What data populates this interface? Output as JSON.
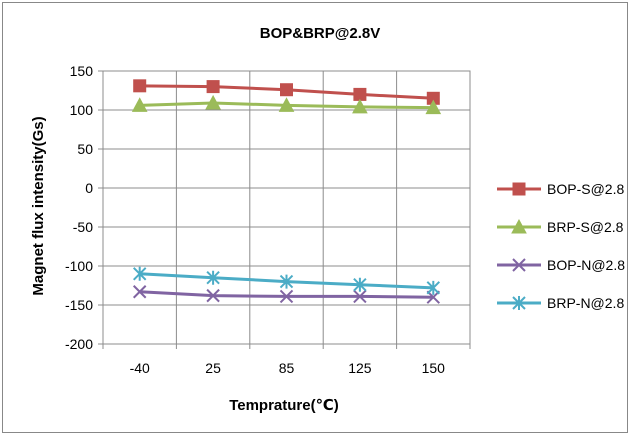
{
  "chart_data": {
    "type": "line",
    "title": "BOP&BRP@2.8V",
    "xlabel": "Temprature(℃)",
    "ylabel": "Magnet flux intensity(Gs)",
    "categories": [
      "-40",
      "25",
      "85",
      "125",
      "150"
    ],
    "ylim": [
      -200,
      150
    ],
    "yticks": [
      "150",
      "100",
      "50",
      "0",
      "-50",
      "-100",
      "-150",
      "-200"
    ],
    "grid": true,
    "legend_position": "right",
    "series": [
      {
        "name": "BOP-S@2.8",
        "values": [
          131,
          130,
          126,
          120,
          115
        ],
        "color": "#c0504d",
        "marker": "square"
      },
      {
        "name": "BRP-S@2.8",
        "values": [
          106,
          109,
          106,
          104,
          103
        ],
        "color": "#9bbb59",
        "marker": "triangle"
      },
      {
        "name": "BOP-N@2.8",
        "values": [
          -133,
          -138,
          -139,
          -139,
          -140
        ],
        "color": "#8064a2",
        "marker": "x"
      },
      {
        "name": "BRP-N@2.8",
        "values": [
          -110,
          -115,
          -120,
          -124,
          -128
        ],
        "color": "#4bacc6",
        "marker": "star"
      }
    ]
  }
}
